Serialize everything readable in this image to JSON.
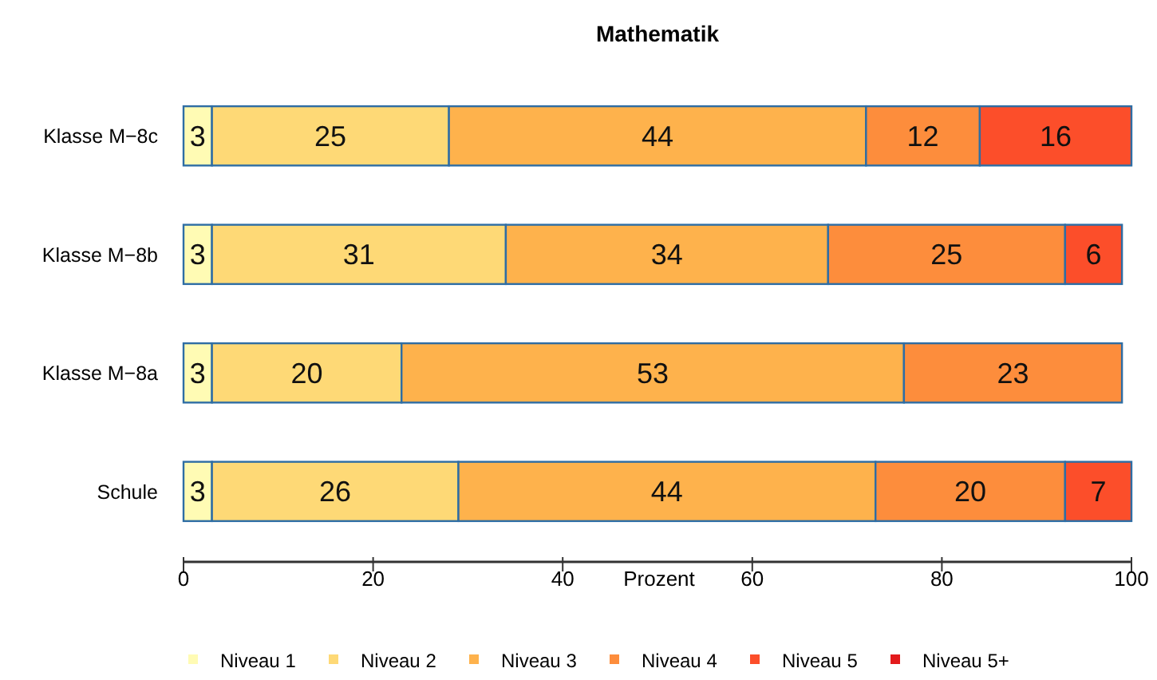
{
  "chart_data": {
    "type": "bar",
    "orientation": "horizontal",
    "stacked": true,
    "title": "Mathematik",
    "xlabel": "Prozent",
    "categories": [
      "Klasse  M−8c",
      "Klasse  M−8b",
      "Klasse  M−8a",
      "Schule"
    ],
    "series": [
      {
        "name": "Niveau 1",
        "color": "#fffbb4",
        "values": [
          3,
          3,
          3,
          3
        ]
      },
      {
        "name": "Niveau 2",
        "color": "#fed976",
        "values": [
          25,
          31,
          20,
          26
        ]
      },
      {
        "name": "Niveau 3",
        "color": "#feb24c",
        "values": [
          44,
          34,
          53,
          44
        ]
      },
      {
        "name": "Niveau 4",
        "color": "#fd8d3c",
        "values": [
          12,
          25,
          23,
          20
        ]
      },
      {
        "name": "Niveau 5",
        "color": "#fc4e2a",
        "values": [
          16,
          6,
          null,
          7
        ]
      },
      {
        "name": "Niveau 5+",
        "color": "#e31a1c",
        "values": [
          null,
          null,
          null,
          null
        ]
      }
    ],
    "xlim": [
      0,
      100
    ],
    "xticks": [
      0,
      20,
      40,
      60,
      80,
      100
    ],
    "data_labels": true,
    "legend": "bottom",
    "grid": false
  }
}
